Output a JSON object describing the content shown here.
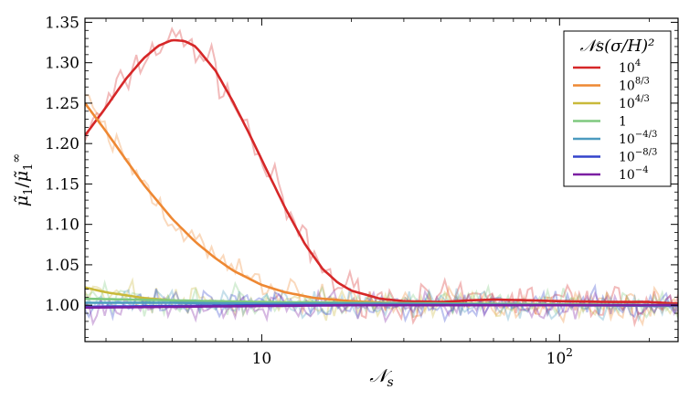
{
  "chart_data": {
    "type": "line",
    "title": "",
    "xlabel": "𝒩",
    "xlabel_sub": "s",
    "ylabel": "μ̃",
    "ylabel_sub": "1",
    "ylabel_den": "μ̃",
    "ylabel_den_sub": "1",
    "ylabel_den_sup": "∞",
    "x_scale": "log",
    "xlim": [
      2.55,
      250
    ],
    "ylim": [
      0.955,
      1.355
    ],
    "grid": false,
    "x_ticks": [
      {
        "value": 10,
        "base": "10",
        "exp": ""
      },
      {
        "value": 100,
        "base": "10",
        "exp": "2"
      }
    ],
    "y_ticks": [
      "1.00",
      "1.05",
      "1.10",
      "1.15",
      "1.20",
      "1.25",
      "1.30",
      "1.35"
    ],
    "legend": {
      "placement": "top-right",
      "title": "𝒩s(σ/H)²",
      "entries": [
        {
          "base": "10",
          "exp": "4"
        },
        {
          "base": "10",
          "exp": "8/3"
        },
        {
          "base": "10",
          "exp": "4/3"
        },
        {
          "base": "1",
          "exp": ""
        },
        {
          "base": "10",
          "exp": "−4/3"
        },
        {
          "base": "10",
          "exp": "−8/3"
        },
        {
          "base": "10",
          "exp": "−4"
        }
      ]
    },
    "series": [
      {
        "color": "#d62728",
        "x": [
          2.55,
          3,
          3.5,
          4,
          4.5,
          5,
          5.5,
          6,
          7,
          8,
          9,
          10,
          12,
          14,
          16,
          18,
          20,
          25,
          30,
          40,
          50,
          60,
          80,
          100,
          150,
          200,
          250
        ],
        "y": [
          1.21,
          1.245,
          1.28,
          1.305,
          1.321,
          1.328,
          1.327,
          1.32,
          1.29,
          1.252,
          1.215,
          1.18,
          1.12,
          1.075,
          1.045,
          1.028,
          1.018,
          1.008,
          1.005,
          1.004,
          1.006,
          1.007,
          1.006,
          1.005,
          1.004,
          1.004,
          1.002
        ]
      },
      {
        "color": "#ee8833",
        "x": [
          2.55,
          3,
          3.5,
          4,
          5,
          6,
          7,
          8,
          10,
          12,
          15,
          20,
          30,
          50,
          100,
          250
        ],
        "y": [
          1.25,
          1.215,
          1.18,
          1.15,
          1.107,
          1.078,
          1.058,
          1.043,
          1.025,
          1.016,
          1.009,
          1.005,
          1.002,
          1.001,
          1.0,
          1.0
        ]
      },
      {
        "color": "#c9b93a",
        "x": [
          2.55,
          3,
          4,
          5,
          7,
          10,
          15,
          20,
          50,
          100,
          250
        ],
        "y": [
          1.022,
          1.016,
          1.009,
          1.006,
          1.003,
          1.002,
          1.001,
          1.001,
          1.0,
          1.0,
          1.0
        ]
      },
      {
        "color": "#7fc97f",
        "x": [
          2.55,
          5,
          10,
          20,
          50,
          100,
          250
        ],
        "y": [
          1.008,
          1.006,
          1.004,
          1.003,
          1.002,
          1.001,
          1.0
        ]
      },
      {
        "color": "#4c9bbf",
        "x": [
          2.55,
          5,
          10,
          20,
          50,
          100,
          250
        ],
        "y": [
          1.003,
          1.003,
          1.002,
          1.002,
          1.001,
          1.0,
          0.999
        ]
      },
      {
        "color": "#3344cc",
        "x": [
          2.55,
          5,
          10,
          20,
          50,
          100,
          250
        ],
        "y": [
          0.998,
          0.999,
          1.0,
          1.0,
          1.0,
          1.0,
          1.0
        ]
      },
      {
        "color": "#7b1fa2",
        "x": [
          2.55,
          5,
          10,
          20,
          50,
          100,
          250
        ],
        "y": [
          0.997,
          0.998,
          0.999,
          1.0,
          1.0,
          1.0,
          1.0
        ]
      }
    ]
  }
}
